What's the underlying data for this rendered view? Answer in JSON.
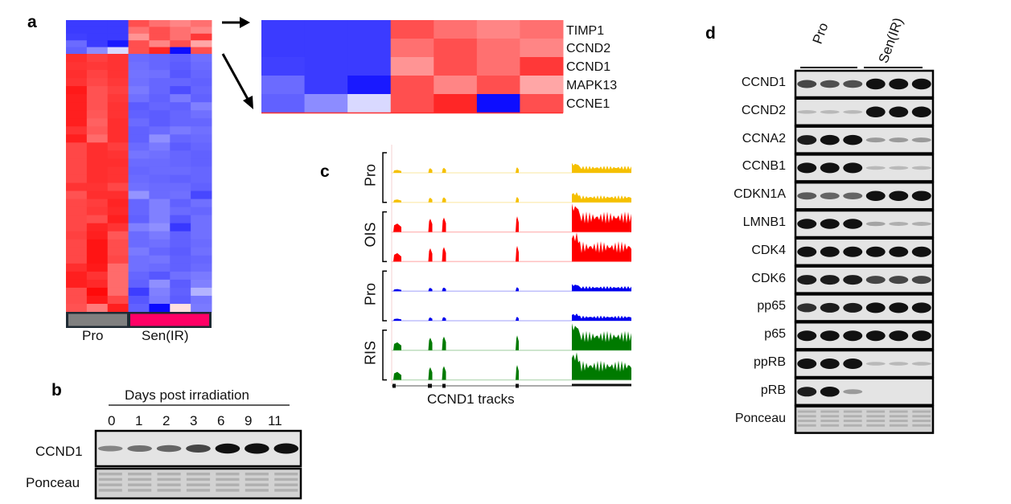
{
  "panel_a": {
    "label": "a",
    "groups": [
      {
        "name": "Pro",
        "color": "#808080"
      },
      {
        "name": "Sen(IR)",
        "color": "#ff0066"
      }
    ],
    "highlight_genes": [
      "TIMP1",
      "CCND2",
      "CCND1",
      "MAPK13",
      "CCNE1"
    ],
    "heatmap_z": [
      [
        -0.77,
        -0.77,
        -0.77,
        0.69,
        0.56,
        0.48,
        0.56
      ],
      [
        -0.77,
        -0.77,
        -0.77,
        0.56,
        0.69,
        0.56,
        0.48
      ],
      [
        -0.75,
        -0.77,
        -0.77,
        0.42,
        0.69,
        0.56,
        0.78
      ],
      [
        -0.58,
        -0.77,
        -0.9,
        0.69,
        0.48,
        0.69,
        0.35
      ],
      [
        -0.62,
        -0.45,
        -0.15,
        0.69,
        0.85,
        -0.95,
        0.69
      ],
      [
        0.82,
        0.75,
        0.8,
        -0.58,
        -0.6,
        -0.62,
        -0.56
      ],
      [
        0.8,
        0.78,
        0.8,
        -0.56,
        -0.6,
        -0.64,
        -0.58
      ],
      [
        0.82,
        0.74,
        0.8,
        -0.55,
        -0.56,
        -0.66,
        -0.6
      ],
      [
        0.8,
        0.72,
        0.78,
        -0.56,
        -0.6,
        -0.6,
        -0.62
      ],
      [
        0.9,
        0.68,
        0.75,
        -0.52,
        -0.6,
        -0.7,
        -0.6
      ],
      [
        0.88,
        0.68,
        0.78,
        -0.56,
        -0.62,
        -0.52,
        -0.62
      ],
      [
        0.88,
        0.68,
        0.8,
        -0.64,
        -0.6,
        -0.62,
        -0.5
      ],
      [
        0.88,
        0.66,
        0.8,
        -0.62,
        -0.64,
        -0.6,
        -0.56
      ],
      [
        0.88,
        0.62,
        0.82,
        -0.58,
        -0.64,
        -0.6,
        -0.6
      ],
      [
        0.8,
        0.65,
        0.82,
        -0.62,
        -0.58,
        -0.52,
        -0.56
      ],
      [
        0.88,
        0.58,
        0.82,
        -0.62,
        -0.44,
        -0.6,
        -0.58
      ],
      [
        0.72,
        0.82,
        0.76,
        -0.58,
        -0.52,
        -0.64,
        -0.6
      ],
      [
        0.72,
        0.82,
        0.8,
        -0.54,
        -0.56,
        -0.6,
        -0.62
      ],
      [
        0.72,
        0.82,
        0.82,
        -0.58,
        -0.58,
        -0.6,
        -0.62
      ],
      [
        0.72,
        0.82,
        0.8,
        -0.6,
        -0.58,
        -0.58,
        -0.6
      ],
      [
        0.72,
        0.82,
        0.8,
        -0.58,
        -0.6,
        -0.62,
        -0.6
      ],
      [
        0.8,
        0.8,
        0.72,
        -0.56,
        -0.58,
        -0.58,
        -0.62
      ],
      [
        0.68,
        0.82,
        0.82,
        -0.42,
        -0.58,
        -0.56,
        -0.72
      ],
      [
        0.72,
        0.76,
        0.86,
        -0.6,
        -0.5,
        -0.62,
        -0.56
      ],
      [
        0.72,
        0.78,
        0.84,
        -0.6,
        -0.5,
        -0.58,
        -0.6
      ],
      [
        0.72,
        0.7,
        0.88,
        -0.62,
        -0.5,
        -0.66,
        -0.56
      ],
      [
        0.72,
        0.86,
        0.8,
        -0.5,
        -0.44,
        -0.78,
        -0.56
      ],
      [
        0.75,
        0.88,
        0.66,
        -0.58,
        -0.52,
        -0.62,
        -0.56
      ],
      [
        0.72,
        0.92,
        0.7,
        -0.58,
        -0.56,
        -0.62,
        -0.58
      ],
      [
        0.72,
        0.92,
        0.7,
        -0.52,
        -0.6,
        -0.64,
        -0.56
      ],
      [
        0.72,
        0.92,
        0.72,
        -0.56,
        -0.54,
        -0.62,
        -0.6
      ],
      [
        0.82,
        0.9,
        0.58,
        -0.56,
        -0.58,
        -0.62,
        -0.58
      ],
      [
        0.88,
        0.8,
        0.58,
        -0.6,
        -0.66,
        -0.56,
        -0.52
      ],
      [
        0.88,
        0.84,
        0.58,
        -0.62,
        -0.44,
        -0.64,
        -0.5
      ],
      [
        0.7,
        0.96,
        0.58,
        -0.76,
        -0.5,
        -0.62,
        -0.3
      ],
      [
        0.7,
        0.9,
        0.72,
        -0.66,
        -0.52,
        -0.64,
        -0.54
      ],
      [
        0.68,
        0.52,
        0.88,
        -0.62,
        -0.96,
        0.12,
        -0.52
      ]
    ]
  },
  "panel_b": {
    "label": "b",
    "title": "Days post irradiation",
    "days": [
      "0",
      "1",
      "2",
      "3",
      "6",
      "9",
      "11"
    ],
    "blots": [
      {
        "name": "CCND1",
        "intensity": [
          0.3,
          0.4,
          0.45,
          0.6,
          0.85,
          0.9,
          0.9
        ]
      },
      {
        "name": "Ponceau",
        "intensity": [
          0.3,
          0.3,
          0.3,
          0.3,
          0.3,
          0.3,
          0.3
        ]
      }
    ]
  },
  "panel_c": {
    "label": "c",
    "caption": "CCND1 tracks",
    "groups": [
      {
        "name": "Pro",
        "color": "#f5c000",
        "scale": 0.35
      },
      {
        "name": "OIS",
        "color": "#ff0000",
        "scale": 1.0
      },
      {
        "name": "Pro",
        "color": "#0000ee",
        "scale": 0.25
      },
      {
        "name": "RIS",
        "color": "#007a00",
        "scale": 0.95
      }
    ]
  },
  "panel_d": {
    "label": "d",
    "lanes": [
      "Pro",
      "Sen(IR)"
    ],
    "blots": [
      {
        "name": "CCND1",
        "intensity": [
          0.6,
          0.55,
          0.55,
          0.95,
          0.95,
          0.95
        ]
      },
      {
        "name": "CCND2",
        "intensity": [
          0.05,
          0.05,
          0.05,
          0.95,
          0.95,
          0.95
        ]
      },
      {
        "name": "CCNA2",
        "intensity": [
          0.8,
          0.85,
          0.85,
          0.2,
          0.2,
          0.2
        ]
      },
      {
        "name": "CCNB1",
        "intensity": [
          0.9,
          0.9,
          0.9,
          0.05,
          0.05,
          0.05
        ]
      },
      {
        "name": "CDKN1A",
        "intensity": [
          0.5,
          0.45,
          0.45,
          0.85,
          0.85,
          0.85
        ]
      },
      {
        "name": "LMNB1",
        "intensity": [
          0.85,
          0.85,
          0.85,
          0.15,
          0.1,
          0.1
        ]
      },
      {
        "name": "CDK4",
        "intensity": [
          0.9,
          0.9,
          0.9,
          0.9,
          0.9,
          0.9
        ]
      },
      {
        "name": "CDK6",
        "intensity": [
          0.8,
          0.8,
          0.8,
          0.6,
          0.6,
          0.6
        ]
      },
      {
        "name": "pp65",
        "intensity": [
          0.7,
          0.8,
          0.8,
          0.9,
          0.9,
          0.9
        ]
      },
      {
        "name": "p65",
        "intensity": [
          0.9,
          0.9,
          0.9,
          0.9,
          0.9,
          0.9
        ]
      },
      {
        "name": "ppRB",
        "intensity": [
          0.9,
          0.9,
          0.9,
          0.05,
          0.05,
          0.05
        ]
      },
      {
        "name": "pRB",
        "intensity": [
          0.8,
          0.85,
          0.2,
          0,
          0,
          0
        ]
      },
      {
        "name": "Ponceau",
        "intensity": [
          0.3,
          0.3,
          0.3,
          0.3,
          0.3,
          0.3
        ]
      }
    ]
  }
}
